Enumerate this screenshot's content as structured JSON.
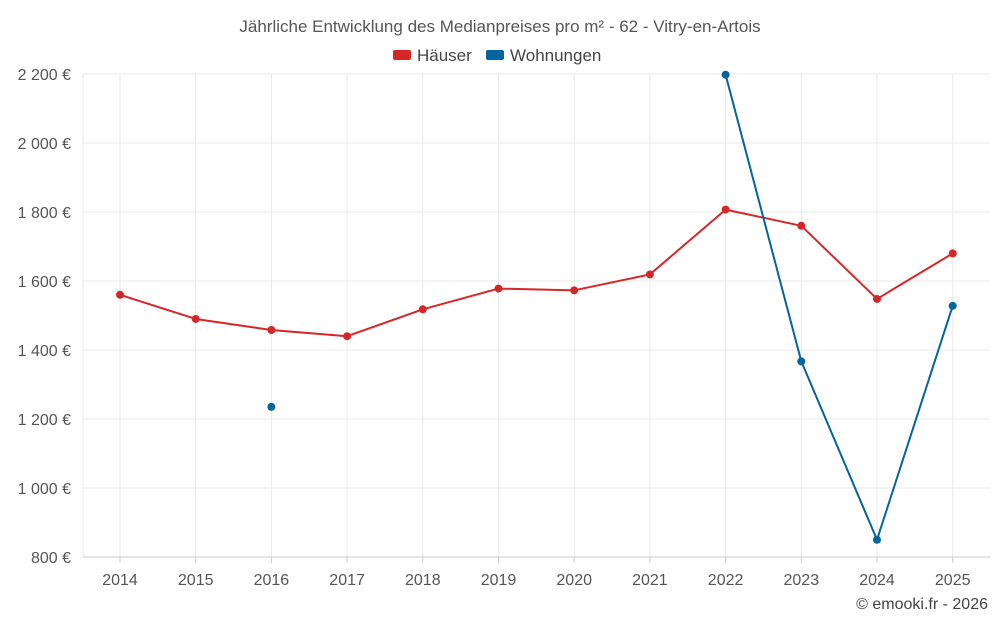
{
  "chart_data": {
    "type": "line",
    "title": "Jährliche Entwicklung des Medianpreises pro m² - 62 - Vitry-en-Artois",
    "xlabel": "",
    "ylabel": "",
    "categories": [
      "2014",
      "2015",
      "2016",
      "2017",
      "2018",
      "2019",
      "2020",
      "2021",
      "2022",
      "2023",
      "2024",
      "2025"
    ],
    "ylim": [
      800,
      2200
    ],
    "yticks": [
      800,
      1000,
      1200,
      1400,
      1600,
      1800,
      2000,
      2200
    ],
    "ytick_labels": [
      "800 €",
      "1 000 €",
      "1 200 €",
      "1 400 €",
      "1 600 €",
      "1 800 €",
      "2 000 €",
      "2 200 €"
    ],
    "grid": true,
    "legend_position": "top-center",
    "series": [
      {
        "name": "Häuser",
        "color": "#d62728",
        "values": [
          1560,
          1490,
          1458,
          1440,
          1518,
          1578,
          1573,
          1619,
          1807,
          1760,
          1548,
          1680
        ]
      },
      {
        "name": "Wohnungen",
        "color": "#04649e",
        "values": [
          null,
          null,
          1235,
          null,
          null,
          null,
          null,
          null,
          2198,
          1367,
          850,
          1528
        ]
      }
    ]
  },
  "credit": "© emooki.fr - 2026"
}
